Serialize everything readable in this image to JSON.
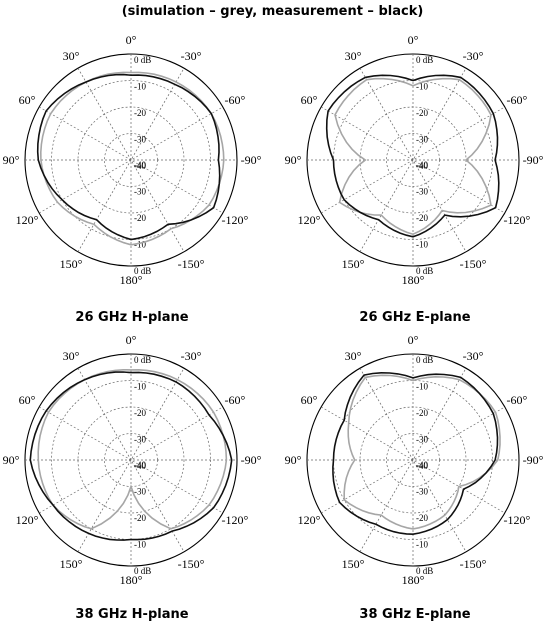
{
  "title": "(simulation – grey, measurement – black)",
  "colors": {
    "simulation": "#a6a6a6",
    "measurement": "#111111",
    "grid": "#666666"
  },
  "chart_data": [
    {
      "type": "polar",
      "label": "26 GHz H-plane",
      "series": [
        {
          "name": "simulation",
          "color": "#a6a6a6",
          "theta": [
            0,
            30,
            60,
            90,
            120,
            150,
            180,
            210,
            240,
            270,
            300,
            330
          ],
          "r_db": [
            -7,
            -6,
            -5,
            -6,
            -8,
            -12,
            -8,
            -10,
            -6,
            -5,
            -5,
            -6
          ]
        },
        {
          "name": "measurement",
          "color": "#111111",
          "theta": [
            0,
            30,
            60,
            90,
            120,
            150,
            180,
            210,
            240,
            270,
            300,
            330
          ],
          "r_db": [
            -8,
            -6,
            -3,
            -5,
            -10,
            -14,
            -10,
            -12,
            -4,
            -7,
            -5,
            -7
          ]
        }
      ]
    },
    {
      "type": "polar",
      "label": "26 GHz E-plane",
      "series": [
        {
          "name": "simulation",
          "color": "#a6a6a6",
          "theta": [
            0,
            30,
            60,
            90,
            120,
            150,
            180,
            210,
            240,
            270,
            300,
            330
          ],
          "r_db": [
            -12,
            -5,
            -6,
            -22,
            -8,
            -16,
            -12,
            -18,
            -6,
            -20,
            -6,
            -5
          ]
        },
        {
          "name": "measurement",
          "color": "#111111",
          "theta": [
            0,
            30,
            60,
            90,
            120,
            150,
            180,
            210,
            240,
            270,
            300,
            330
          ],
          "r_db": [
            -10,
            -4,
            -3,
            -10,
            -10,
            -14,
            -11,
            -16,
            -4,
            -9,
            -5,
            -4
          ]
        }
      ]
    },
    {
      "type": "polar",
      "label": "38 GHz H-plane",
      "series": [
        {
          "name": "simulation",
          "color": "#a6a6a6",
          "theta": [
            0,
            30,
            60,
            90,
            120,
            150,
            180,
            210,
            240,
            270,
            300,
            330
          ],
          "r_db": [
            -6,
            -5,
            -4,
            -5,
            -6,
            -10,
            -30,
            -10,
            -6,
            -4,
            -4,
            -5
          ]
        },
        {
          "name": "measurement",
          "color": "#111111",
          "theta": [
            0,
            30,
            60,
            90,
            120,
            150,
            180,
            210,
            240,
            270,
            300,
            330
          ],
          "r_db": [
            -7,
            -5,
            -3,
            -2,
            -6,
            -8,
            -10,
            -9,
            -4,
            -2,
            -6,
            -6
          ]
        }
      ]
    },
    {
      "type": "polar",
      "label": "38 GHz E-plane",
      "series": [
        {
          "name": "simulation",
          "color": "#a6a6a6",
          "theta": [
            0,
            30,
            60,
            90,
            120,
            150,
            180,
            210,
            240,
            270,
            300,
            330
          ],
          "r_db": [
            -10,
            -4,
            -12,
            -18,
            -10,
            -16,
            -14,
            -16,
            -20,
            -8,
            -4,
            -5
          ]
        },
        {
          "name": "measurement",
          "color": "#111111",
          "theta": [
            0,
            30,
            60,
            90,
            120,
            150,
            180,
            210,
            240,
            270,
            300,
            330
          ],
          "r_db": [
            -9,
            -3,
            -10,
            -10,
            -8,
            -12,
            -12,
            -14,
            -18,
            -9,
            -5,
            -4
          ]
        }
      ]
    }
  ],
  "angle_labels": [
    "0°",
    "30°",
    "60°",
    "90°",
    "120°",
    "150°",
    "180°",
    "-150°",
    "-120°",
    "-90°",
    "-60°",
    "-30°"
  ],
  "db_labels_upper": [
    "0 dB",
    "-10",
    "-20",
    "-30",
    "-40"
  ],
  "db_labels_lower": [
    "-40",
    "-30",
    "-20",
    "-10",
    "0 dB"
  ],
  "rlim_db": [
    -40,
    0
  ]
}
